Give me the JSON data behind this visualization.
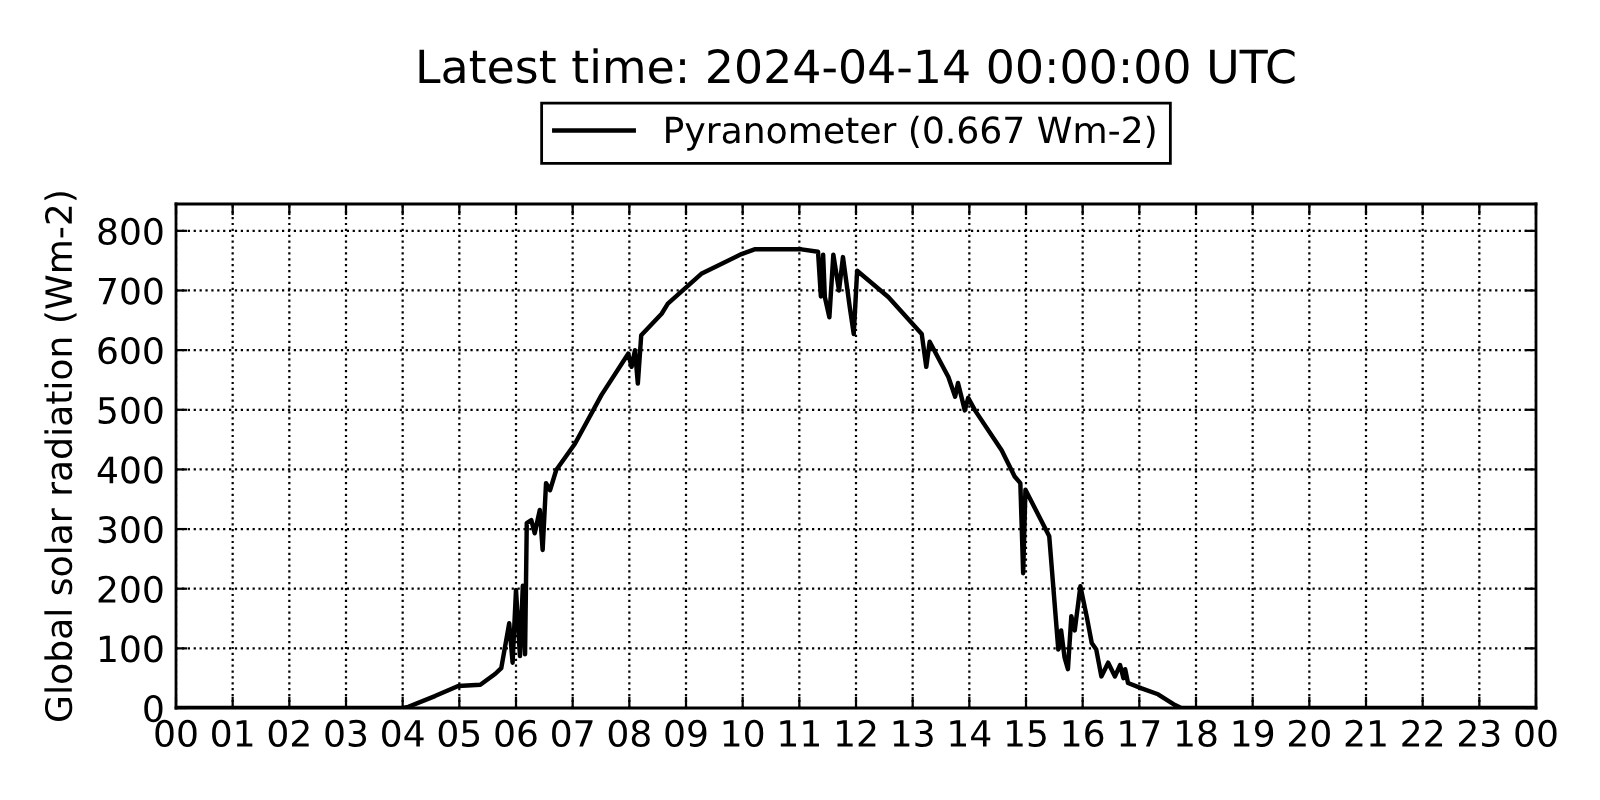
{
  "chart_data": {
    "type": "line",
    "title": "Latest time: 2024-04-14 00:00:00 UTC",
    "ylabel": "Global solar radiation (Wm-2)",
    "xlim": [
      0,
      24
    ],
    "xticks": [
      {
        "value": 0,
        "label": "00"
      },
      {
        "value": 1,
        "label": "01"
      },
      {
        "value": 2,
        "label": "02"
      },
      {
        "value": 3,
        "label": "03"
      },
      {
        "value": 4,
        "label": "04"
      },
      {
        "value": 5,
        "label": "05"
      },
      {
        "value": 6,
        "label": "06"
      },
      {
        "value": 7,
        "label": "07"
      },
      {
        "value": 8,
        "label": "08"
      },
      {
        "value": 9,
        "label": "09"
      },
      {
        "value": 10,
        "label": "10"
      },
      {
        "value": 11,
        "label": "11"
      },
      {
        "value": 12,
        "label": "12"
      },
      {
        "value": 13,
        "label": "13"
      },
      {
        "value": 14,
        "label": "14"
      },
      {
        "value": 15,
        "label": "15"
      },
      {
        "value": 16,
        "label": "16"
      },
      {
        "value": 17,
        "label": "17"
      },
      {
        "value": 18,
        "label": "18"
      },
      {
        "value": 19,
        "label": "19"
      },
      {
        "value": 20,
        "label": "20"
      },
      {
        "value": 21,
        "label": "21"
      },
      {
        "value": 22,
        "label": "22"
      },
      {
        "value": 23,
        "label": "23"
      },
      {
        "value": 24,
        "label": "00"
      }
    ],
    "ylim": [
      0,
      845
    ],
    "yticks": [
      0,
      100,
      200,
      300,
      400,
      500,
      600,
      700,
      800
    ],
    "grid": true,
    "legend": "top",
    "line_style": "solid",
    "series": [
      {
        "name": "Pyranometer (0.667 Wm-2)",
        "color": "#000000",
        "x": [
          0,
          4.0,
          4.1,
          4.57,
          4.98,
          5.37,
          5.63,
          5.74,
          5.88,
          5.94,
          6.0,
          6.07,
          6.12,
          6.16,
          6.19,
          6.27,
          6.33,
          6.42,
          6.47,
          6.53,
          6.6,
          6.71,
          7.04,
          7.51,
          7.98,
          8.04,
          8.1,
          8.15,
          8.21,
          8.57,
          8.68,
          9.27,
          9.98,
          10.21,
          11.04,
          11.33,
          11.38,
          11.42,
          11.45,
          11.53,
          11.6,
          11.7,
          11.77,
          11.89,
          11.96,
          12.02,
          12.57,
          13.16,
          13.24,
          13.3,
          13.63,
          13.75,
          13.8,
          13.92,
          13.98,
          14.1,
          14.57,
          14.8,
          14.9,
          14.95,
          14.99,
          15.41,
          15.57,
          15.62,
          15.68,
          15.74,
          15.8,
          15.86,
          15.96,
          16.07,
          16.16,
          16.24,
          16.33,
          16.45,
          16.57,
          16.66,
          16.72,
          16.75,
          16.8,
          17.04,
          17.33,
          17.63,
          17.74,
          24
        ],
        "values": [
          0,
          0,
          2,
          20,
          37,
          39,
          57,
          67,
          142,
          76,
          198,
          87,
          205,
          90,
          310,
          315,
          293,
          332,
          265,
          377,
          365,
          399,
          443,
          525,
          594,
          572,
          600,
          544,
          625,
          661,
          678,
          728,
          761,
          769,
          769,
          765,
          690,
          760,
          689,
          655,
          760,
          700,
          756,
          672,
          627,
          733,
          689,
          627,
          572,
          614,
          555,
          522,
          545,
          499,
          520,
          499,
          432,
          388,
          377,
          226,
          366,
          288,
          98,
          130,
          85,
          65,
          154,
          130,
          204,
          154,
          109,
          98,
          53,
          76,
          53,
          72,
          50,
          65,
          42,
          33,
          23,
          5,
          0,
          0
        ]
      }
    ]
  }
}
